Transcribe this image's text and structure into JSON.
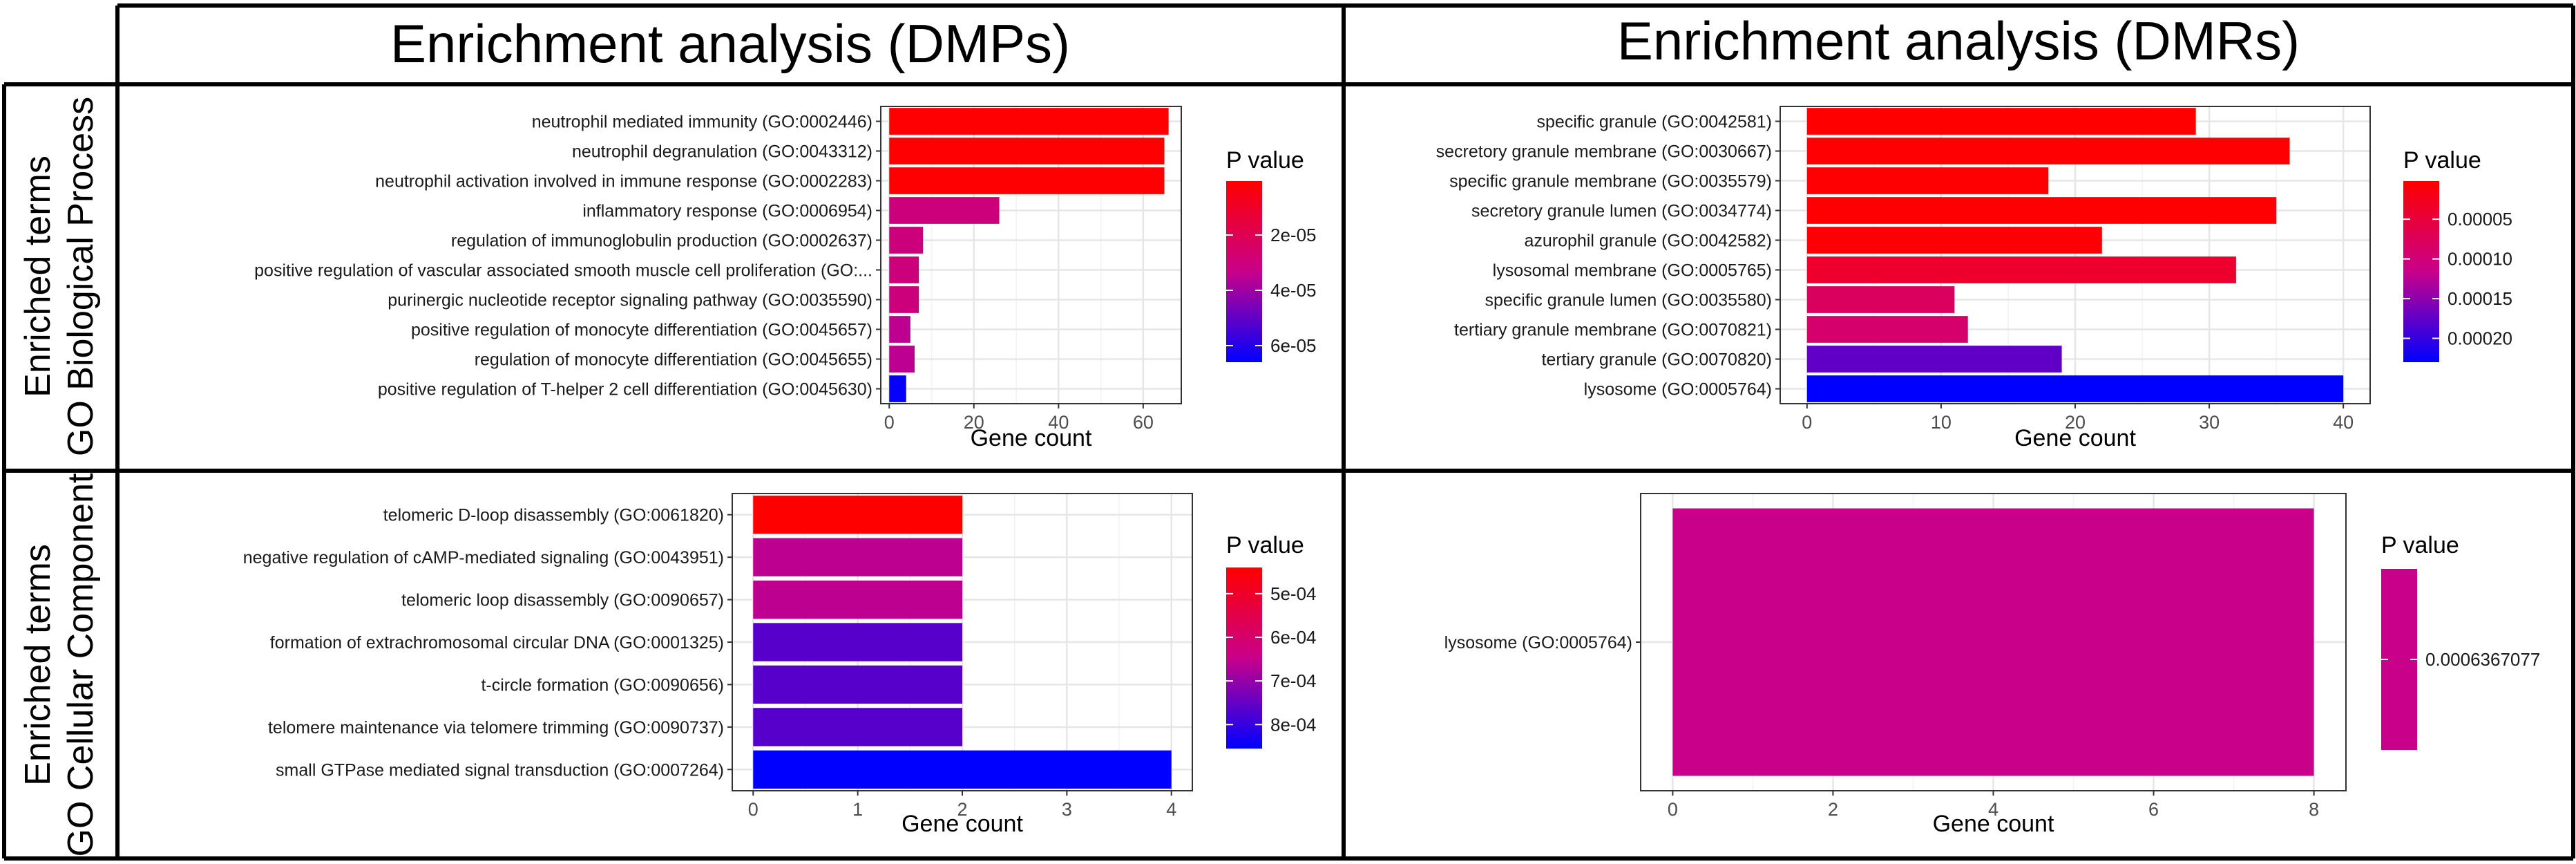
{
  "columns": [
    "Enrichment analysis (DMPs)",
    "Enrichment analysis (DMRs)"
  ],
  "rows": [
    {
      "line1": "Enriched terms",
      "line2": "GO Biological Process"
    },
    {
      "line1": "Enriched terms",
      "line2": "GO Cellular Component"
    }
  ],
  "colors": {
    "high": "#ff0000",
    "low": "#0000ff",
    "grid": "#ebebeb",
    "frame": "#333333"
  },
  "chart_data": [
    {
      "type": "bar",
      "id": "dmp-bp",
      "orientation": "horizontal",
      "categories": [
        "neutrophil mediated immunity (GO:0002446)",
        "neutrophil degranulation (GO:0043312)",
        "neutrophil activation involved in immune response (GO:0002283)",
        "inflammatory response (GO:0006954)",
        "regulation of immunoglobulin production (GO:0002637)",
        "positive regulation of vascular associated smooth muscle cell proliferation (GO:...",
        "purinergic nucleotide receptor signaling pathway (GO:0035590)",
        "positive regulation of monocyte differentiation (GO:0045657)",
        "regulation of monocyte differentiation (GO:0045655)",
        "positive regulation of T-helper 2 cell differentiation (GO:0045630)"
      ],
      "values": [
        66,
        65,
        65,
        26,
        8,
        7,
        7,
        5,
        6,
        4
      ],
      "color_values": [
        1e-06,
        1e-06,
        1e-06,
        3e-05,
        3e-05,
        3e-05,
        3e-05,
        3.5e-05,
        3.5e-05,
        6.5e-05
      ],
      "xlim": [
        -2,
        69
      ],
      "xticks": [
        0,
        20,
        40,
        60
      ],
      "xlabel": "Gene count",
      "legend": {
        "title": "P value",
        "range": [
          5e-07,
          6.6e-05
        ],
        "ticks": [
          2e-05,
          4e-05,
          6e-05
        ],
        "tick_labels": [
          "2e-05",
          "4e-05",
          "6e-05"
        ]
      }
    },
    {
      "type": "bar",
      "id": "dmr-bp",
      "orientation": "horizontal",
      "categories": [
        "specific granule (GO:0042581)",
        "secretory granule membrane (GO:0030667)",
        "specific granule membrane (GO:0035579)",
        "secretory granule lumen (GO:0034774)",
        "azurophil granule (GO:0042582)",
        "lysosomal membrane (GO:0005765)",
        "specific granule lumen (GO:0035580)",
        "tertiary granule membrane (GO:0070821)",
        "tertiary granule (GO:0070820)",
        "lysosome (GO:0005764)"
      ],
      "values": [
        29,
        36,
        18,
        35,
        22,
        32,
        11,
        12,
        19,
        40
      ],
      "color_values": [
        2e-06,
        4e-06,
        4e-06,
        4e-06,
        6e-06,
        4e-05,
        8e-05,
        9e-05,
        0.000175,
        0.00023
      ],
      "xlim": [
        -2,
        42
      ],
      "xticks": [
        0,
        10,
        20,
        30,
        40
      ],
      "xlabel": "Gene count",
      "legend": {
        "title": "P value",
        "range": [
          2e-06,
          0.00023
        ],
        "ticks": [
          5e-05,
          0.0001,
          0.00015,
          0.0002
        ],
        "tick_labels": [
          "0.00005",
          "0.00010",
          "0.00015",
          "0.00020"
        ]
      }
    },
    {
      "type": "bar",
      "id": "dmp-cc",
      "orientation": "horizontal",
      "categories": [
        "telomeric D-loop disassembly (GO:0061820)",
        "negative regulation of cAMP-mediated signaling (GO:0043951)",
        "telomeric loop disassembly (GO:0090657)",
        "formation of extrachromosomal circular DNA (GO:0001325)",
        "t-circle formation (GO:0090656)",
        "telomere maintenance via telomere trimming (GO:0090737)",
        "small GTPase mediated signal transduction (GO:0007264)"
      ],
      "values": [
        2,
        2,
        2,
        2,
        2,
        2,
        4
      ],
      "color_values": [
        0.00044,
        0.000658,
        0.000658,
        0.000765,
        0.000765,
        0.000765,
        0.000855
      ],
      "xlim": [
        -0.2,
        4.2
      ],
      "xticks": [
        0,
        1,
        2,
        3,
        4
      ],
      "xlabel": "Gene count",
      "legend": {
        "title": "P value",
        "range": [
          0.00044,
          0.000855
        ],
        "ticks": [
          0.0005,
          0.0006,
          0.0007,
          0.0008
        ],
        "tick_labels": [
          "5e-04",
          "6e-04",
          "7e-04",
          "8e-04"
        ]
      }
    },
    {
      "type": "bar",
      "id": "dmr-cc",
      "orientation": "horizontal",
      "categories": [
        "lysosome (GO:0005764)"
      ],
      "values": [
        8
      ],
      "color_values": [
        0.0006367077
      ],
      "single_color": "#c8008a",
      "xlim": [
        -0.4,
        8.4
      ],
      "xticks": [
        0,
        2,
        4,
        6,
        8
      ],
      "xlabel": "Gene count",
      "legend": {
        "title": "P value",
        "range": [
          0.0006367,
          0.0006367
        ],
        "ticks": [
          0.0006367077
        ],
        "tick_labels": [
          "0.0006367077"
        ]
      }
    }
  ]
}
